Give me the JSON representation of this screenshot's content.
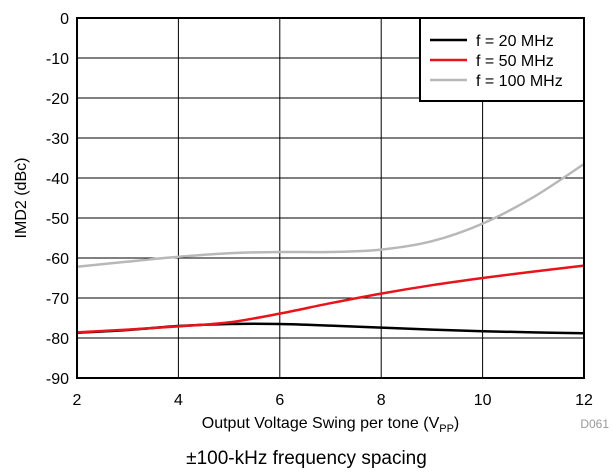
{
  "chart_data": {
    "type": "line",
    "xlabel": "Output Voltage Swing per tone (V",
    "xlabel_sub": "PP",
    "xlabel_close": ")",
    "ylabel": "IMD2 (dBc)",
    "xlim": [
      2,
      12
    ],
    "ylim": [
      -90,
      0
    ],
    "xticks": [
      2,
      4,
      6,
      8,
      10,
      12
    ],
    "yticks": [
      0,
      -10,
      -20,
      -30,
      -40,
      -50,
      -60,
      -70,
      -80,
      -90
    ],
    "grid": true,
    "legend_position": "top-right",
    "series": [
      {
        "name": "f = 20 MHz",
        "color": "#000000",
        "x": [
          2,
          3,
          4,
          5,
          6,
          7,
          8,
          9,
          10,
          11,
          12
        ],
        "y": [
          -78.7,
          -78.0,
          -77.0,
          -76.5,
          -76.5,
          -76.9,
          -77.4,
          -77.9,
          -78.3,
          -78.6,
          -78.8
        ]
      },
      {
        "name": "f = 50 MHz",
        "color": "#e8141b",
        "x": [
          2,
          3,
          4,
          5,
          6,
          7,
          8,
          9,
          10,
          11,
          12
        ],
        "y": [
          -78.6,
          -77.9,
          -77.1,
          -76.1,
          -73.9,
          -71.3,
          -68.9,
          -66.8,
          -65.0,
          -63.4,
          -61.9
        ]
      },
      {
        "name": "f = 100 MHz",
        "color": "#b8b8b8",
        "x": [
          2,
          3,
          4,
          5,
          6,
          7,
          8,
          9,
          10,
          11,
          12
        ],
        "y": [
          -62.2,
          -60.9,
          -59.7,
          -58.8,
          -58.5,
          -58.5,
          -57.9,
          -55.8,
          -51.4,
          -44.8,
          -36.5
        ]
      }
    ]
  },
  "figure_code": "D061",
  "caption": "±100-kHz frequency spacing"
}
